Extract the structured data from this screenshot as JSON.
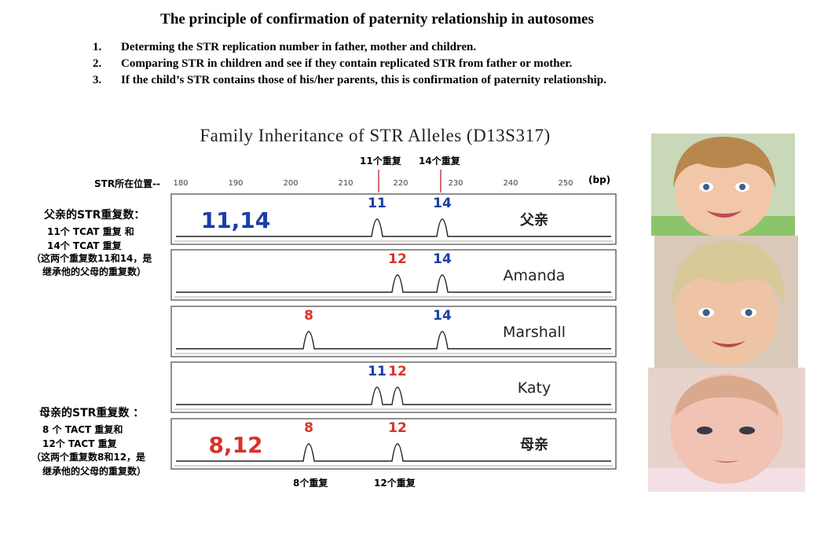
{
  "title": "The principle of confirmation of paternity relationship in autosomes",
  "steps": [
    {
      "num": "1.",
      "text": "Determing the STR replication number in father, mother and children."
    },
    {
      "num": "2.",
      "text": "Comparing STR in children and see if they contain replicated STR from father or mother."
    },
    {
      "num": "3.",
      "text": "If the child’s STR contains those of his/her parents, this is confirmation of paternity relationship."
    }
  ],
  "chart_title": "Family Inheritance of STR Alleles (D13S317)",
  "axis": {
    "label": "STR所在位置--",
    "unit": "(bp)",
    "ticks": [
      "180",
      "190",
      "200",
      "210",
      "220",
      "230",
      "240",
      "250"
    ]
  },
  "top_markers": {
    "m11": "11个重复",
    "m14": "14个重复"
  },
  "bottom_markers": {
    "m8": "8个重复",
    "m12": "12个重复"
  },
  "father_notes": {
    "heading": "父亲的STR重复数：",
    "l1": "11个 TCAT 重复 和",
    "l2": "14个 TCAT 重复",
    "l3": "（这两个重复数11和14，是",
    "l4": "继承他的父母的重复数）"
  },
  "mother_notes": {
    "heading": "母亲的STR重复数 ：",
    "l1": "8  个 TACT 重复和",
    "l2": "12个 TACT 重复",
    "l3": "（这两个重复数8和12，是",
    "l4": "继承他的父母的重复数）"
  },
  "rows": [
    {
      "name": "父亲",
      "big": "11,14",
      "big_color": "#1a3fa8",
      "peaks": [
        {
          "label": "11",
          "color": "#1a3fa8"
        },
        {
          "label": "14",
          "color": "#1a3fa8"
        }
      ]
    },
    {
      "name": "Amanda",
      "big": "",
      "big_color": "",
      "peaks": [
        {
          "label": "12",
          "color": "#d8322a"
        },
        {
          "label": "14",
          "color": "#1a3fa8"
        }
      ]
    },
    {
      "name": "Marshall",
      "big": "",
      "big_color": "",
      "peaks": [
        {
          "label": "8",
          "color": "#d8322a"
        },
        {
          "label": "14",
          "color": "#1a3fa8"
        }
      ]
    },
    {
      "name": "Katy",
      "big": "",
      "big_color": "",
      "peaks": [
        {
          "label": "11",
          "color": "#1a3fa8"
        },
        {
          "label": "12",
          "color": "#d8322a"
        }
      ]
    },
    {
      "name": "母亲",
      "big": "8,12",
      "big_color": "#d8322a",
      "peaks": [
        {
          "label": "8",
          "color": "#d8322a"
        },
        {
          "label": "12",
          "color": "#d8322a"
        }
      ]
    }
  ],
  "colors": {
    "father_blue": "#1a3fa8",
    "mother_red": "#d8322a",
    "marker_line": "#c0202a"
  }
}
